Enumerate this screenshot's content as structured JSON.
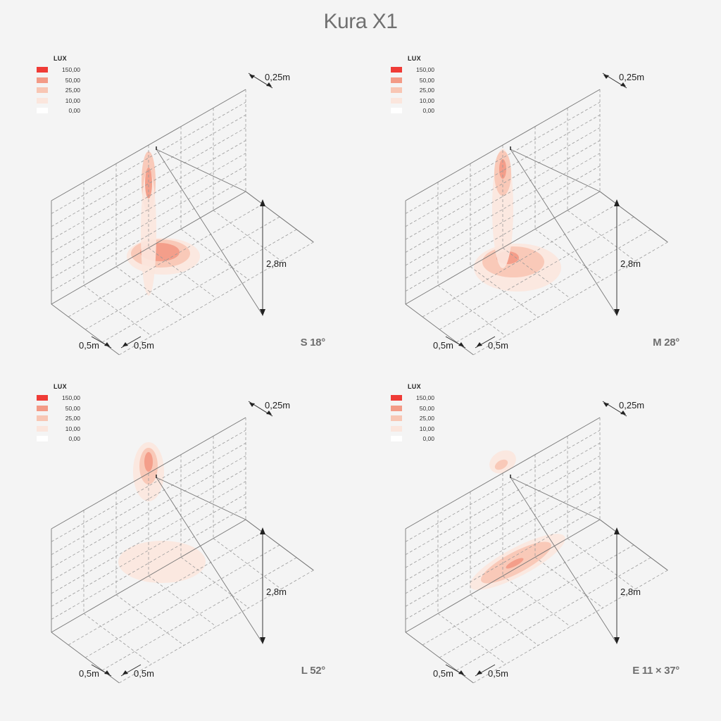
{
  "page": {
    "title": "Kura X1"
  },
  "legend": {
    "title": "LUX",
    "items": [
      {
        "label": "150,00",
        "color": "#ef3b36"
      },
      {
        "label": "50,00",
        "color": "#f39a86"
      },
      {
        "label": "25,00",
        "color": "#f8c6b4"
      },
      {
        "label": "10,00",
        "color": "#fbe6dd"
      },
      {
        "label": "0,00",
        "color": "#ffffff"
      }
    ]
  },
  "dimensions": {
    "grid_cell": "0,25m",
    "height": "2,8m",
    "floor_left": "0,5m",
    "floor_right": "0,5m"
  },
  "panels": [
    {
      "beam_label": "S 18°",
      "wall_spot": [
        {
          "level": "25,00",
          "rx": 10,
          "ry": 43,
          "cx": 0,
          "cy": 0
        },
        {
          "level": "10,00",
          "rx": 11,
          "ry": 90,
          "cx": 0,
          "cy": 72
        },
        {
          "level": "50,00",
          "rx": 5,
          "ry": 22,
          "cx": 0,
          "cy": 2
        }
      ],
      "floor_spot": [
        {
          "level": "10,00",
          "rx": 52,
          "ry": 26,
          "cx": 0,
          "cy": 4
        },
        {
          "level": "25,00",
          "rx": 42,
          "ry": 20,
          "cx": -4,
          "cy": 0
        },
        {
          "level": "50,00",
          "rx": 28,
          "ry": 13,
          "cx": -5,
          "cy": -2
        }
      ]
    },
    {
      "beam_label": "M 28°",
      "wall_spot": [
        {
          "level": "10,00",
          "rx": 15,
          "ry": 85,
          "cx": 0,
          "cy": 50
        },
        {
          "level": "25,00",
          "rx": 12,
          "ry": 32,
          "cx": 0,
          "cy": 0
        },
        {
          "level": "50,00",
          "rx": 5,
          "ry": 14,
          "cx": 0,
          "cy": -6
        }
      ],
      "floor_spot": [
        {
          "level": "10,00",
          "rx": 62,
          "ry": 34,
          "cx": 0,
          "cy": 10
        },
        {
          "level": "25,00",
          "rx": 44,
          "ry": 22,
          "cx": -6,
          "cy": 2
        },
        {
          "level": "50,00",
          "rx": 16,
          "ry": 9,
          "cx": -14,
          "cy": -4
        }
      ]
    },
    {
      "beam_label": "L 52°",
      "wall_spot": [
        {
          "level": "10,00",
          "rx": 22,
          "ry": 42,
          "cx": 0,
          "cy": 6
        },
        {
          "level": "25,00",
          "rx": 13,
          "ry": 26,
          "cx": 0,
          "cy": -2
        },
        {
          "level": "50,00",
          "rx": 6,
          "ry": 14,
          "cx": 0,
          "cy": -8
        }
      ],
      "floor_spot": [
        {
          "level": "10,00",
          "rx": 62,
          "ry": 30,
          "cx": 0,
          "cy": 0
        }
      ]
    },
    {
      "beam_label": "E 11 × 37°",
      "wall_spot": [
        {
          "level": "10,00",
          "rx": 20,
          "ry": 15,
          "cx": 0,
          "cy": 0
        },
        {
          "level": "25,00",
          "rx": 10,
          "ry": 6,
          "cx": -2,
          "cy": 4
        }
      ],
      "floor_spot": [
        {
          "level": "10,00",
          "rx": 76,
          "ry": 20,
          "cx": 0,
          "cy": 0
        },
        {
          "level": "25,00",
          "rx": 56,
          "ry": 15,
          "cx": -2,
          "cy": 1
        },
        {
          "level": "50,00",
          "rx": 14,
          "ry": 4,
          "cx": -4,
          "cy": 2
        }
      ]
    }
  ]
}
